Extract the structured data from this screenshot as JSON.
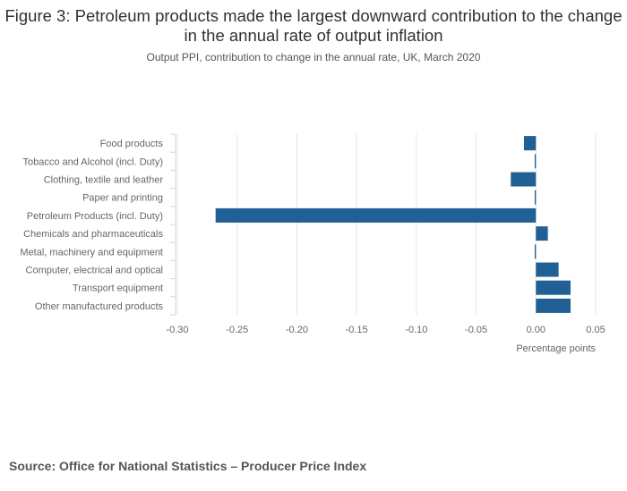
{
  "chart_data": {
    "type": "bar",
    "orientation": "horizontal",
    "title": "Figure 3: Petroleum products made the largest downward contribution to the change in the annual rate of output inflation",
    "subtitle": "Output PPI, contribution to change in the annual rate, UK, March 2020",
    "categories": [
      "Food products",
      "Tobacco and Alcohol (incl. Duty)",
      "Clothing, textile and leather",
      "Paper and printing",
      "Petroleum Products (incl. Duty)",
      "Chemicals and pharmaceuticals",
      "Metal, machinery and equipment",
      "Computer, electrical and optical",
      "Transport equipment",
      "Other manufactured products"
    ],
    "values": [
      -0.01,
      -0.001,
      -0.021,
      -0.001,
      -0.268,
      0.01,
      -0.001,
      0.019,
      0.029,
      0.029
    ],
    "xlabel": "Percentage points",
    "xlim": [
      -0.3,
      0.05
    ],
    "xticks": [
      "-0.30",
      "-0.25",
      "-0.20",
      "-0.15",
      "-0.10",
      "-0.05",
      "0.00",
      "0.05"
    ],
    "grid": true,
    "bar_color": "#206095"
  },
  "source": "Source: Office for National Statistics – Producer Price Index"
}
